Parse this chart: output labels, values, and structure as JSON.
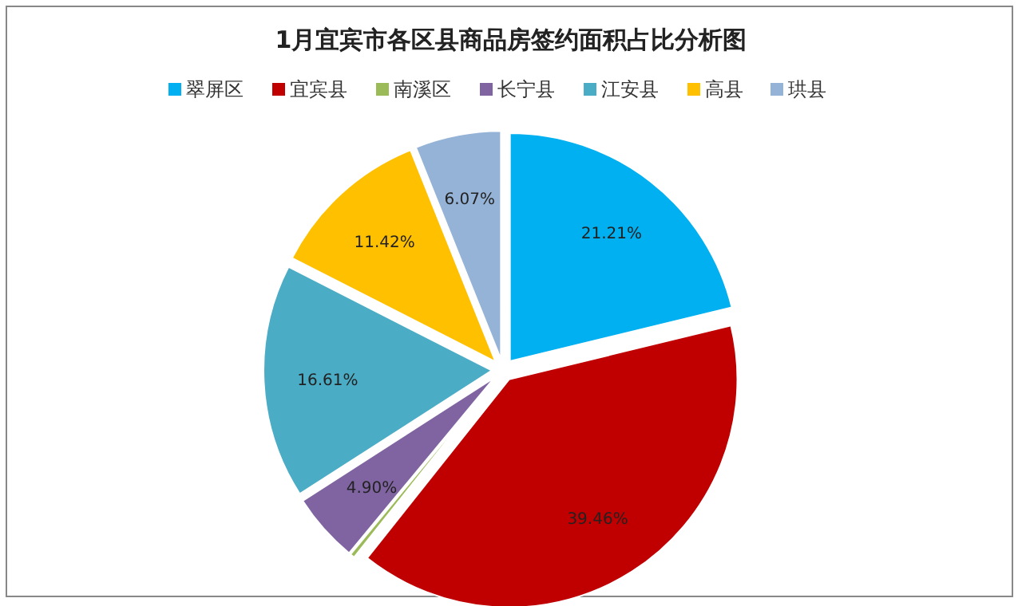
{
  "chart_data": {
    "type": "pie",
    "title": "1月宜宾市各区县商品房签约面积占比分析图",
    "categories": [
      "翠屏区",
      "宜宾县",
      "南溪区",
      "长宁县",
      "江安县",
      "高县",
      "珙县"
    ],
    "values": [
      21.21,
      39.46,
      0.33,
      4.9,
      16.61,
      11.42,
      6.07
    ],
    "colors": [
      "#00b0f0",
      "#c00000",
      "#9bbb59",
      "#8064a2",
      "#4bacc6",
      "#ffc000",
      "#95b3d7"
    ],
    "value_labels": [
      "21.21%",
      "39.46%",
      null,
      "4.90%",
      "16.61%",
      "11.42%",
      "6.07%"
    ],
    "legend": "top"
  }
}
